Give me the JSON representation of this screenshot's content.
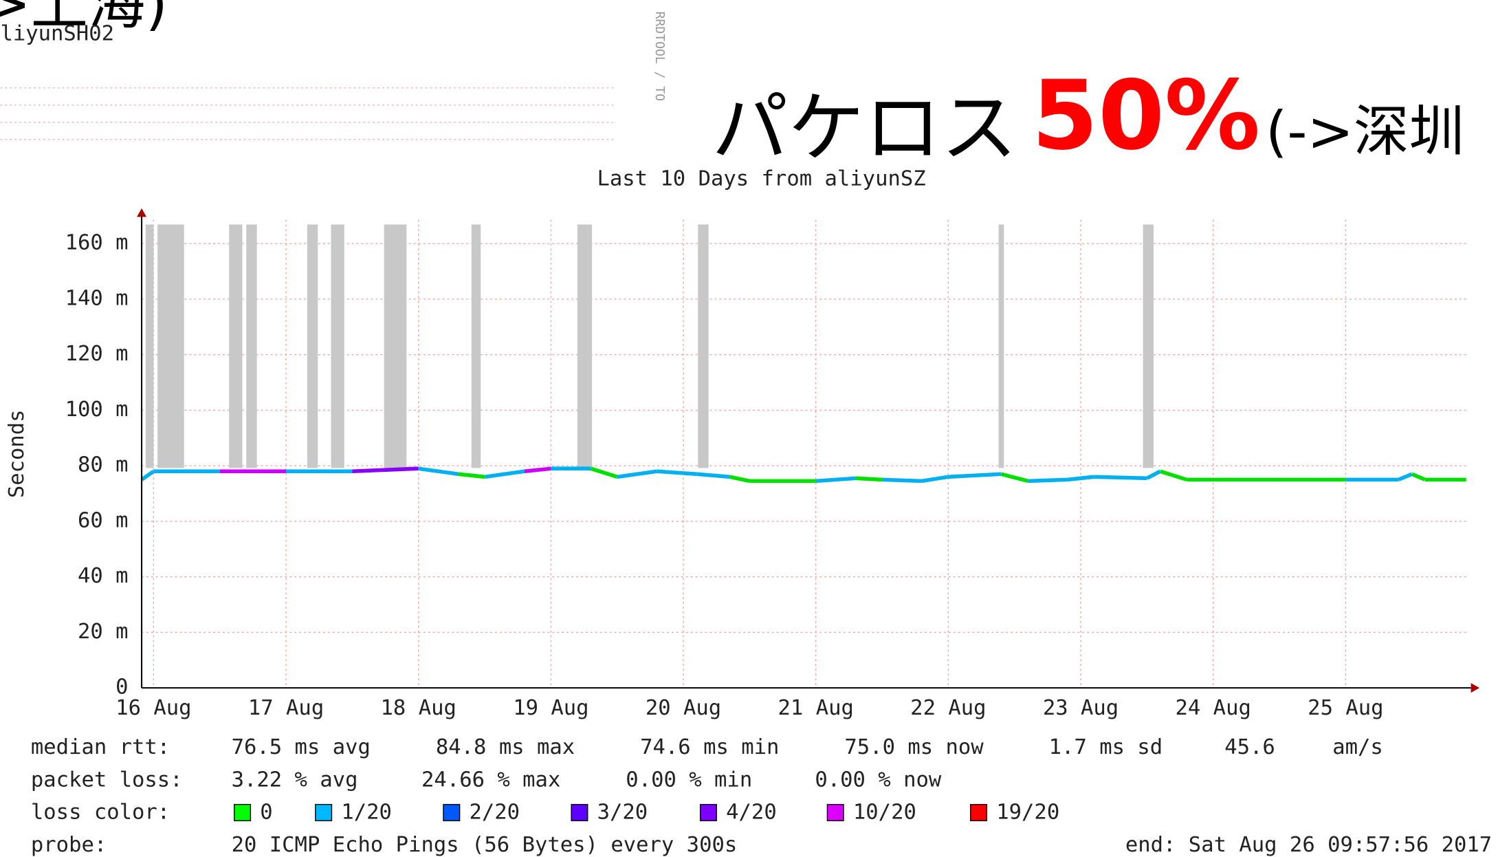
{
  "chart_data": {
    "type": "line",
    "title": "Last 10 Days from aliyunSZ",
    "y_label": "Seconds",
    "annotations": {
      "left_title": "->上海)",
      "left_subtitle": "liyunSH02",
      "watermark": "RRDTOOL / TO",
      "overlay_text": "パケロス",
      "overlay_percent": "50%",
      "overlay_dest": "(->深圳"
    },
    "xlim": [
      16.41,
      26.41
    ],
    "xticks": [
      {
        "value": 16.5,
        "label": "16 Aug"
      },
      {
        "value": 17.5,
        "label": "17 Aug"
      },
      {
        "value": 18.5,
        "label": "18 Aug"
      },
      {
        "value": 19.5,
        "label": "19 Aug"
      },
      {
        "value": 20.5,
        "label": "20 Aug"
      },
      {
        "value": 21.5,
        "label": "21 Aug"
      },
      {
        "value": 22.5,
        "label": "22 Aug"
      },
      {
        "value": 23.5,
        "label": "23 Aug"
      },
      {
        "value": 24.5,
        "label": "24 Aug"
      },
      {
        "value": 25.5,
        "label": "25 Aug"
      }
    ],
    "ylim": [
      0,
      0.1686
    ],
    "yticks": [
      0,
      {
        "value": 0.02,
        "label": "20 m"
      },
      {
        "value": 0.04,
        "label": "40 m"
      },
      {
        "value": 0.06,
        "label": "60 m"
      },
      {
        "value": 0.08,
        "label": "80 m"
      },
      {
        "value": 0.1,
        "label": "100 m"
      },
      {
        "value": 0.12,
        "label": "120 m"
      },
      {
        "value": 0.14,
        "label": "140 m"
      },
      {
        "value": 0.16,
        "label": "160 m"
      }
    ],
    "grid": true,
    "x": [
      16.41,
      16.5,
      17.0,
      17.5,
      18.0,
      18.5,
      18.8,
      19.0,
      19.3,
      19.5,
      19.8,
      20.0,
      20.3,
      20.6,
      20.85,
      21.0,
      21.5,
      21.8,
      22.0,
      22.3,
      22.5,
      22.9,
      23.1,
      23.4,
      23.6,
      24.0,
      24.1,
      24.3,
      25.0,
      25.5,
      25.9,
      26.0,
      26.1,
      26.41
    ],
    "series": [
      {
        "name": "median rtt",
        "values": [
          0.075,
          0.078,
          0.078,
          0.078,
          0.078,
          0.079,
          0.077,
          0.076,
          0.078,
          0.079,
          0.079,
          0.076,
          0.078,
          0.077,
          0.076,
          0.0745,
          0.0745,
          0.0755,
          0.075,
          0.0745,
          0.076,
          0.077,
          0.0745,
          0.075,
          0.076,
          0.0755,
          0.078,
          0.075,
          0.075,
          0.075,
          0.075,
          0.077,
          0.075,
          0.075
        ],
        "segment_colors": [
          "#00b0f0",
          "#00b0f0",
          "#cc00ff",
          "#00b0f0",
          "#8800ff",
          "#00b0f0",
          "#00e000",
          "#00b0f0",
          "#cc00ff",
          "#00b0f0",
          "#00e000",
          "#00b0f0",
          "#00b0f0",
          "#00b0f0",
          "#00e000",
          "#00e000",
          "#00b0f0",
          "#00e000",
          "#00b0f0",
          "#00b0f0",
          "#00b0f0",
          "#00e000",
          "#00b0f0",
          "#00b0f0",
          "#00b0f0",
          "#00b0f0",
          "#00e000",
          "#00e000",
          "#00e000",
          "#00b0f0",
          "#00b0f0",
          "#00e000",
          "#00e000",
          "#00e000"
        ]
      }
    ],
    "loss_spans": [
      [
        16.44,
        16.5
      ],
      [
        16.53,
        16.73
      ],
      [
        17.07,
        17.17
      ],
      [
        17.2,
        17.28
      ],
      [
        17.66,
        17.74
      ],
      [
        17.84,
        17.94
      ],
      [
        18.24,
        18.41
      ],
      [
        18.9,
        18.97
      ],
      [
        19.7,
        19.81
      ],
      [
        20.61,
        20.69
      ],
      [
        22.88,
        22.92
      ],
      [
        23.97,
        24.05
      ]
    ],
    "loss_span_color": "#c8c8c8",
    "legend": {
      "rows": [
        {
          "label": "median rtt:",
          "items": [
            "76.5 ms avg",
            "84.8 ms max",
            "74.6 ms min",
            "75.0 ms now",
            "1.7 ms sd",
            "45.6",
            "am/s"
          ]
        },
        {
          "label": "packet loss:",
          "items": [
            "3.22 % avg",
            "24.66 % max",
            "0.00 % min",
            "0.00 % now"
          ]
        }
      ],
      "loss_color_label": "loss color:",
      "loss_colors": [
        {
          "name": "0",
          "color": "#00ff00"
        },
        {
          "name": "1/20",
          "color": "#00b8ff"
        },
        {
          "name": "2/20",
          "color": "#0059ff"
        },
        {
          "name": "3/20",
          "color": "#5e00ff"
        },
        {
          "name": "4/20",
          "color": "#7e00ff"
        },
        {
          "name": "10/20",
          "color": "#dd00ff"
        },
        {
          "name": "19/20",
          "color": "#ff0000"
        }
      ],
      "probe_label": "probe:",
      "probe": "20 ICMP Echo Pings (56 Bytes) every 300s",
      "end": "end: Sat Aug 26 09:57:56 2017"
    }
  }
}
